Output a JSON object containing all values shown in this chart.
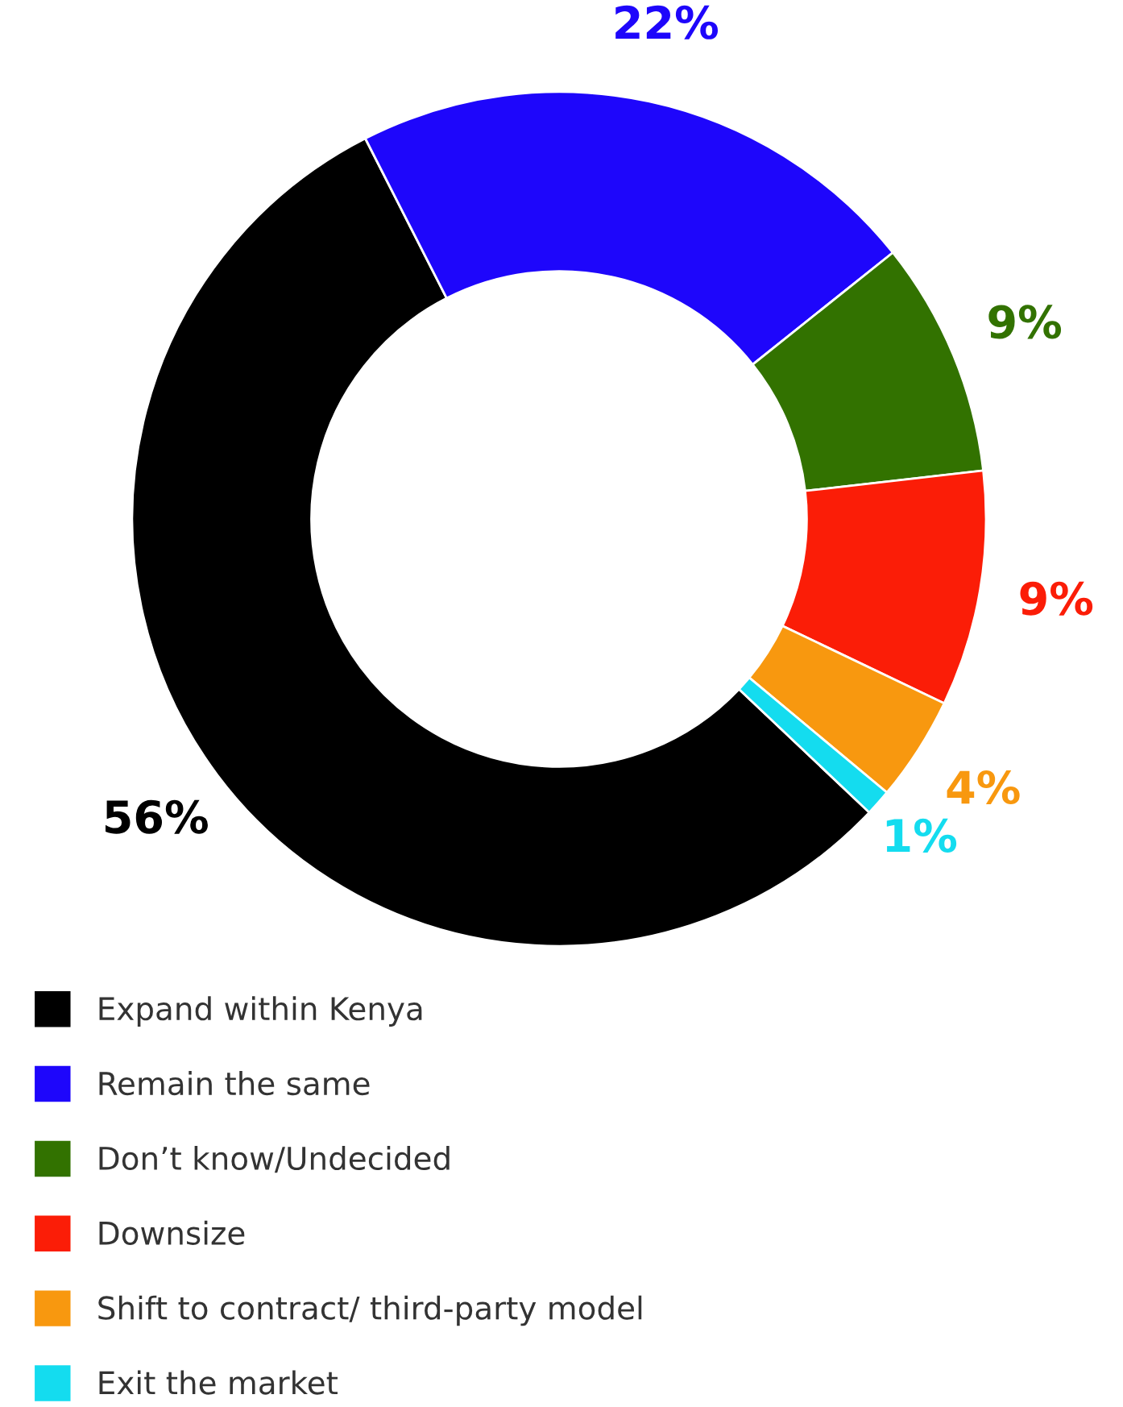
{
  "chart_data": {
    "type": "donut",
    "categories": [
      "Expand within Kenya",
      "Remain the same",
      "Don’t know/Undecided",
      "Downsize",
      "Shift to contract/ third-party model",
      "Exit the market"
    ],
    "values": [
      56,
      22,
      9,
      9,
      4,
      1
    ],
    "colors": [
      "#000000",
      "#1e06fb",
      "#327200",
      "#fb1d07",
      "#f8980f",
      "#14dcef"
    ],
    "value_labels": [
      "56%",
      "22%",
      "9%",
      "9%",
      "4%",
      "1%"
    ],
    "legend": "bottom left"
  }
}
